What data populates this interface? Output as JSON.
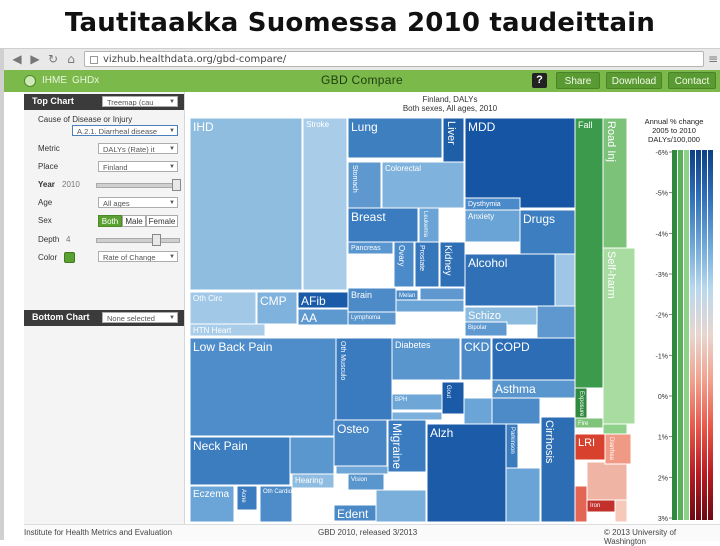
{
  "slide_title": "Tautitaakka Suomessa 2010 taudeittain",
  "browser": {
    "url": "vizhub.healthdata.org/gbd-compare/"
  },
  "app": {
    "nav": [
      "IHME",
      "GHDx"
    ],
    "title": "GBD Compare",
    "help": "?",
    "buttons": [
      "Share",
      "Download",
      "Contact"
    ]
  },
  "sidebar": {
    "top_chart_header": "Top Chart",
    "top_chart_select": "Treemap (cau",
    "cause_label": "Cause of Disease or Injury",
    "cause_value": "A.2.1. Diarrheal disease",
    "metric_label": "Metric",
    "metric_value": "DALYs (Rate) it",
    "place_label": "Place",
    "place_value": "Finland",
    "year_label": "Year",
    "year_value": "2010",
    "age_label": "Age",
    "age_value": "All ages",
    "sex_label": "Sex",
    "sex_options": [
      "Both",
      "Male",
      "Female"
    ],
    "depth_label": "Depth",
    "depth_value": "4",
    "color_label": "Color",
    "color_value": "Rate of Change",
    "bottom_chart_header": "Bottom Chart",
    "bottom_chart_select": "None selected"
  },
  "chart_title_lines": [
    "Finland, DALYs",
    "Both sexes, All ages, 2010"
  ],
  "legend": {
    "title_lines": [
      "Annual % change",
      "2005 to 2010",
      "DALYs/100,000"
    ],
    "ticks": [
      "-6%",
      "-5%",
      "-4%",
      "-3%",
      "-2%",
      "-1%",
      "0%",
      "1%",
      "2%",
      "3%"
    ],
    "gradient": [
      "#0b3f86",
      "#2f6eb8",
      "#6aa5d6",
      "#b9d8ee",
      "#e8d6cf",
      "#f2a08c",
      "#e8574a",
      "#b71c23",
      "#6d0a12"
    ]
  },
  "treemap_cells": [
    {
      "label": "IHD",
      "color": "#8fbde0"
    },
    {
      "label": "Stroke",
      "color": "#a9cde9"
    },
    {
      "label": "Lung",
      "color": "#3e7fc0"
    },
    {
      "label": "Liver",
      "color": "#1f5fa8"
    },
    {
      "label": "MDD",
      "color": "#1555a4"
    },
    {
      "label": "Colorectal",
      "color": "#7fb2dc"
    },
    {
      "label": "Stomach",
      "color": "#5f98cf"
    },
    {
      "label": "Breast",
      "color": "#3a7cbf"
    },
    {
      "label": "Leukemia",
      "color": "#6aa4d6"
    },
    {
      "label": "Dysthymia",
      "color": "#4b8ac8"
    },
    {
      "label": "Anxiety",
      "color": "#6aa3d5"
    },
    {
      "label": "Drugs",
      "color": "#3c7ec0"
    },
    {
      "label": "Pancreas",
      "color": "#5a96cf"
    },
    {
      "label": "Ovary",
      "color": "#4c8bc9"
    },
    {
      "label": "Prostate",
      "color": "#3677bc"
    },
    {
      "label": "Kidney",
      "color": "#2e6fb6"
    },
    {
      "label": "Alcohol",
      "color": "#2f70b7"
    },
    {
      "label": "Oth Circ",
      "color": "#a2c8e7"
    },
    {
      "label": "CMP",
      "color": "#7fb2dc"
    },
    {
      "label": "AFib",
      "color": "#1a5ba9"
    },
    {
      "label": "AA",
      "color": "#5d98cf"
    },
    {
      "label": "Brain",
      "color": "#4d8ac8"
    },
    {
      "label": "Melan",
      "color": "#4e8cc9"
    },
    {
      "label": "Lymphoma",
      "color": "#5a95ce"
    },
    {
      "label": "Schizo",
      "color": "#8cbbe0"
    },
    {
      "label": "Bipolar",
      "color": "#5f99d0"
    },
    {
      "label": "HTN Heart",
      "color": "#a9cde9"
    },
    {
      "label": "Low Back Pain",
      "color": "#4f8dca"
    },
    {
      "label": "Oth Musculo",
      "color": "#3a7bbf"
    },
    {
      "label": "Diabetes",
      "color": "#5a96ce"
    },
    {
      "label": "CKD",
      "color": "#4c8ac8"
    },
    {
      "label": "COPD",
      "color": "#2d6db5"
    },
    {
      "label": "BPH",
      "color": "#6ea6d7"
    },
    {
      "label": "Gout",
      "color": "#1b5aa7"
    },
    {
      "label": "Asthma",
      "color": "#5a96ce"
    },
    {
      "label": "Neck Pain",
      "color": "#3c7dc0"
    },
    {
      "label": "Osteo",
      "color": "#4986c6"
    },
    {
      "label": "Migraine",
      "color": "#3b7bbf"
    },
    {
      "label": "Alzh",
      "color": "#1b5ba8"
    },
    {
      "label": "Parkinson",
      "color": "#3b7cbf"
    },
    {
      "label": "Cirrhosis",
      "color": "#2d6db4"
    },
    {
      "label": "Eczema",
      "color": "#6ba4d6"
    },
    {
      "label": "Acne",
      "color": "#3b7bbf"
    },
    {
      "label": "Hearing",
      "color": "#8fbde1"
    },
    {
      "label": "Vision",
      "color": "#5a96ce"
    },
    {
      "label": "Edent",
      "color": "#4b89c7"
    },
    {
      "label": "Fall",
      "color": "#3c9a4c"
    },
    {
      "label": "Road Inj",
      "color": "#7cc278"
    },
    {
      "label": "Self-harm",
      "color": "#a8dca0"
    },
    {
      "label": "Exposure",
      "color": "#2f8a3f"
    },
    {
      "label": "Fire",
      "color": "#7fc47a"
    },
    {
      "label": "LRI",
      "color": "#d9412f"
    },
    {
      "label": "Diarrhea",
      "color": "#f09a86"
    },
    {
      "label": "Iron",
      "color": "#c2312b"
    },
    {
      "label": "Oth Cardio",
      "color": "#4d8cc9"
    }
  ]
}
